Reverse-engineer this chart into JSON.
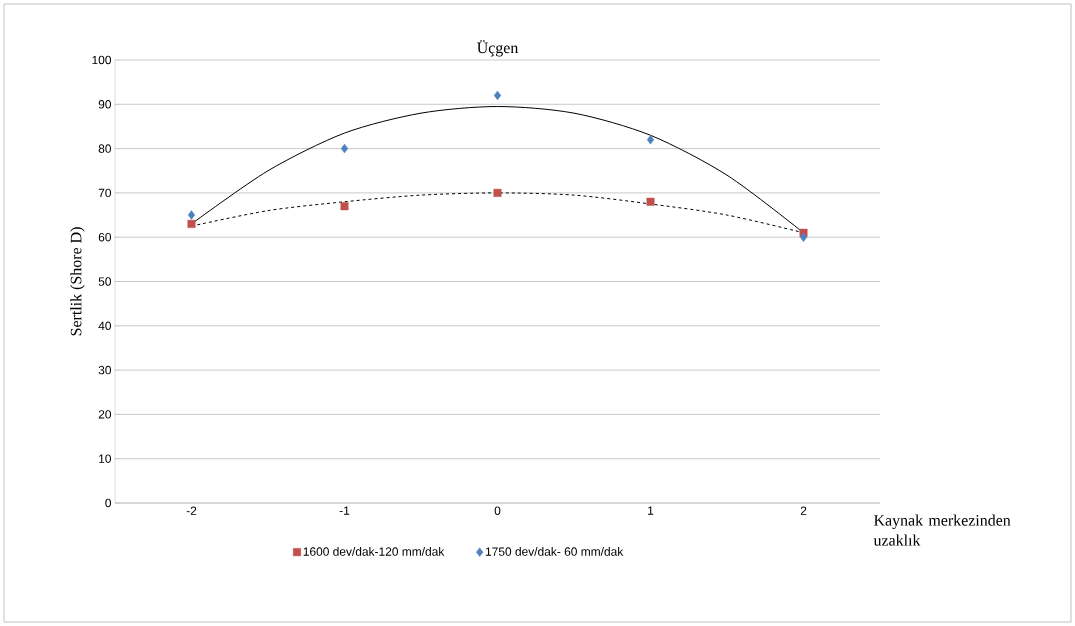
{
  "chart_data": {
    "type": "scatter",
    "title": "Üçgen",
    "xlabel": "Kaynak merkezinden uzaklık",
    "ylabel": "Sertlik (Shore D)",
    "x": [
      -2,
      -1,
      0,
      1,
      2
    ],
    "series": [
      {
        "name": "1750 dev/dak- 60 mm/dak",
        "color": "#4f81bd",
        "marker": "diamond",
        "values": [
          65,
          80,
          92,
          82,
          60
        ]
      },
      {
        "name": "1600 dev/dak-120 mm/dak",
        "color": "#c0504d",
        "marker": "square",
        "values": [
          63,
          67,
          70,
          68,
          61
        ]
      },
      {
        "type": "line",
        "color": "#000000",
        "line_style": "solid",
        "marker": "none",
        "x": [
          -2,
          -1.5,
          -1,
          -0.5,
          0,
          0.5,
          1,
          1.5,
          2
        ],
        "values": [
          63,
          75,
          83.5,
          88,
          89.5,
          88,
          83,
          74,
          61
        ]
      },
      {
        "type": "line",
        "color": "#000000",
        "line_style": "dashed",
        "marker": "none",
        "x": [
          -2,
          -1.5,
          -1,
          -0.5,
          0,
          0.5,
          1,
          1.5,
          2
        ],
        "values": [
          62.5,
          66,
          68,
          69.5,
          70,
          69.5,
          67.5,
          65,
          61
        ]
      }
    ],
    "xlim": [
      -2.5,
      2.5
    ],
    "xticks": [
      -2,
      -1,
      0,
      1,
      2
    ],
    "ylim": [
      0,
      100
    ],
    "yticks": [
      0,
      10,
      20,
      30,
      40,
      50,
      60,
      70,
      80,
      90,
      100
    ],
    "grid": "y",
    "legend": "bottom"
  }
}
